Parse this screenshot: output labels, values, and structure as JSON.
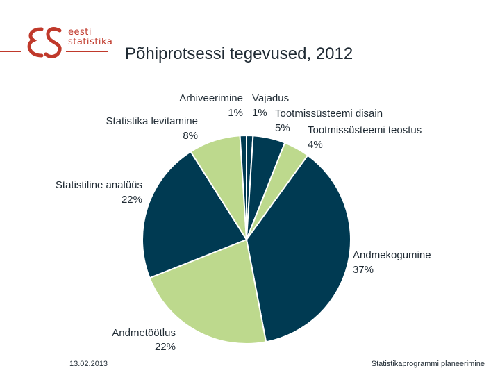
{
  "header": {
    "logo_line1": "eesti",
    "logo_line2": "statistika",
    "title": "Põhiprotsessi tegevused, 2012"
  },
  "footer": {
    "date": "13.02.2013",
    "program": "Statistikaprogrammi planeerimine"
  },
  "colors": {
    "dark": "#003a52",
    "light": "#bdd98d",
    "brand": "#c0392b"
  },
  "chart_data": {
    "type": "pie",
    "title": "Põhiprotsessi tegevused, 2012",
    "slices": [
      {
        "label": "Vajadus",
        "value": 1,
        "value_label": "1%",
        "color": "#003a52"
      },
      {
        "label": "Tootmissüsteemi disain",
        "value": 5,
        "value_label": "5%",
        "color": "#003a52"
      },
      {
        "label": "Tootmissüsteemi teostus",
        "value": 4,
        "value_label": "4%",
        "color": "#bdd98d"
      },
      {
        "label": "Andmekogumine",
        "value": 37,
        "value_label": "37%",
        "color": "#003a52"
      },
      {
        "label": "Andmetöötlus",
        "value": 22,
        "value_label": "22%",
        "color": "#bdd98d"
      },
      {
        "label": "Statistiline analüüs",
        "value": 22,
        "value_label": "22%",
        "color": "#003a52"
      },
      {
        "label": "Statistika levitamine",
        "value": 8,
        "value_label": "8%",
        "color": "#bdd98d"
      },
      {
        "label": "Arhiveerimine",
        "value": 1,
        "value_label": "1%",
        "color": "#003a52"
      }
    ]
  }
}
